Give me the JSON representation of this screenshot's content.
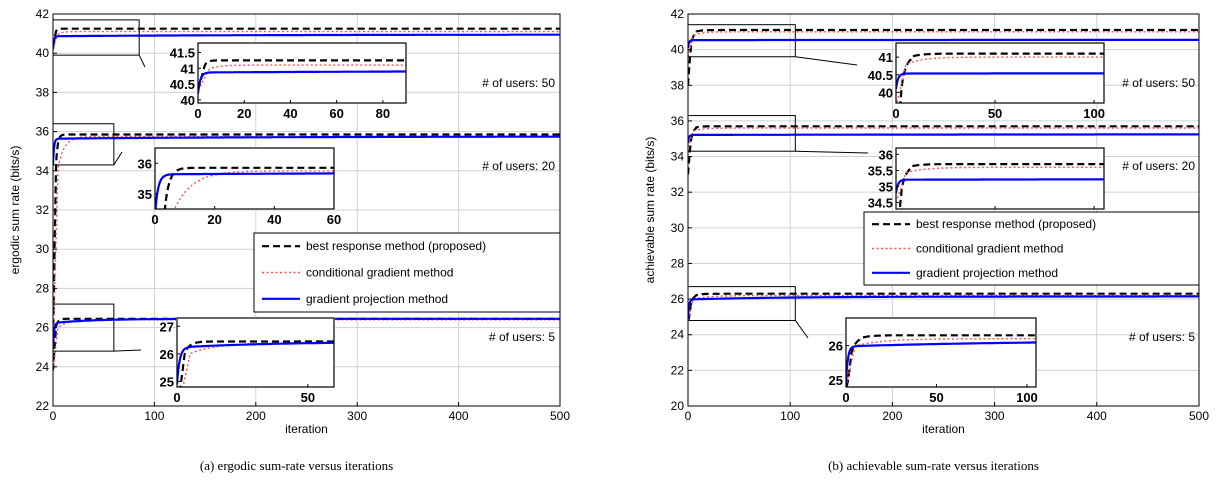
{
  "chart_data": [
    {
      "type": "line",
      "caption": "(a) ergodic sum-rate versus iterations",
      "xlabel": "iteration",
      "ylabel": "ergodic sum rate (bits/s)",
      "xlim": [
        0,
        500
      ],
      "ylim": [
        22,
        42
      ],
      "xticks": [
        0,
        100,
        200,
        300,
        400,
        500
      ],
      "yticks": [
        22,
        24,
        26,
        28,
        30,
        32,
        34,
        36,
        38,
        40,
        42
      ],
      "grid": true,
      "legend": {
        "placement": "center-right",
        "entries": [
          "best response method (proposed)",
          "conditional gradient method",
          "gradient projection method"
        ]
      },
      "groups": [
        {
          "annotation": "# of users: 50",
          "series": [
            {
              "name": "best response method (proposed)",
              "start": 40.3,
              "end": 41.25,
              "rise": 3,
              "tau": 1.2,
              "ly": -0.4,
              "lk": 1.0
            },
            {
              "name": "conditional gradient method",
              "start": 40.3,
              "end": 41.1,
              "rise": 5,
              "tau": 4,
              "ly": -0.4,
              "lk": 1.0
            },
            {
              "name": "gradient projection method",
              "start": 40.4,
              "end": 40.95,
              "rise": 0,
              "tau": 200,
              "ly": 40.2,
              "lk": 1.0
            }
          ],
          "inset": {
            "xlim": [
              0,
              90
            ],
            "ylim": [
              39.9,
              41.8
            ],
            "xticks": [
              0,
              20,
              40,
              60,
              80
            ],
            "yticks": [
              40,
              40.5,
              41,
              41.5
            ],
            "zoom_xlim": [
              0,
              85
            ],
            "zoom_ylim": [
              39.9,
              41.7
            ]
          }
        },
        {
          "annotation": "# of users: 20",
          "series": [
            {
              "name": "best response method (proposed)",
              "start": 25,
              "end": 35.85,
              "rise": 3,
              "tau": 1.5,
              "ly": -0.4,
              "lk": 1.0
            },
            {
              "name": "conditional gradient method",
              "start": 25,
              "end": 35.75,
              "rise": 5,
              "tau": 6,
              "ly": -0.4,
              "lk": 1.0
            },
            {
              "name": "gradient projection method",
              "start": 35.0,
              "end": 35.75,
              "rise": 0,
              "tau": 200,
              "ly": 34.3,
              "lk": 1.0
            }
          ],
          "inset": {
            "xlim": [
              0,
              60
            ],
            "ylim": [
              34.5,
              36.5
            ],
            "xticks": [
              0,
              20,
              40,
              60
            ],
            "yticks": [
              35,
              36
            ],
            "zoom_xlim": [
              0,
              60
            ],
            "zoom_ylim": [
              34.3,
              36.4
            ]
          }
        },
        {
          "annotation": "# of users: 5",
          "series": [
            {
              "name": "best response method (proposed)",
              "start": 23.8,
              "end": 26.45,
              "rise": 3,
              "tau": 2,
              "ly": -0.4,
              "lk": 1.0
            },
            {
              "name": "conditional gradient method",
              "start": 23.8,
              "end": 26.4,
              "rise": 5,
              "tau": 10,
              "ly": -0.4,
              "lk": 1.0
            },
            {
              "name": "gradient projection method",
              "start": 25.0,
              "end": 26.45,
              "rise": 0,
              "tau": 40,
              "ly": 24.9,
              "lk": 1.0
            }
          ],
          "inset": {
            "xlim": [
              0,
              60
            ],
            "ylim": [
              24.8,
              27.3
            ],
            "xticks": [
              0,
              50
            ],
            "yticks": [
              25,
              26,
              27
            ],
            "zoom_xlim": [
              0,
              60
            ],
            "zoom_ylim": [
              24.8,
              27.2
            ]
          }
        }
      ]
    },
    {
      "type": "line",
      "caption": "(b) achievable sum-rate versus iterations",
      "xlabel": "iteration",
      "ylabel": "achievable sum rate (bits/s)",
      "xlim": [
        0,
        500
      ],
      "ylim": [
        20,
        42
      ],
      "xticks": [
        0,
        100,
        200,
        300,
        400,
        500
      ],
      "yticks": [
        20,
        22,
        24,
        26,
        28,
        30,
        32,
        34,
        36,
        38,
        40,
        42
      ],
      "grid": true,
      "legend": {
        "placement": "center-right",
        "entries": [
          "best response method (proposed)",
          "conditional gradient method",
          "gradient projection method"
        ]
      },
      "groups": [
        {
          "annotation": "# of users: 50",
          "series": [
            {
              "name": "best response method (proposed)",
              "start": 39.6,
              "end": 41.1,
              "rise": 3,
              "tau": 5,
              "ly": 38.0,
              "lk": 2.0
            },
            {
              "name": "conditional gradient method",
              "start": 39.6,
              "end": 41.0,
              "rise": 5,
              "tau": 8,
              "ly": -0.4,
              "lk": 1.0
            },
            {
              "name": "gradient projection method",
              "start": 40.45,
              "end": 40.55,
              "rise": 0,
              "tau": 300,
              "ly": 40.1,
              "lk": 1.0
            }
          ],
          "inset": {
            "xlim": [
              0,
              105
            ],
            "ylim": [
              39.7,
              41.4
            ],
            "xticks": [
              0,
              50,
              100
            ],
            "yticks": [
              40,
              40.5,
              41
            ],
            "zoom_xlim": [
              0,
              105
            ],
            "zoom_ylim": [
              39.6,
              41.4
            ]
          }
        },
        {
          "annotation": "# of users: 20",
          "series": [
            {
              "name": "best response method (proposed)",
              "start": 34.5,
              "end": 35.7,
              "rise": 3,
              "tau": 5,
              "ly": 33.0,
              "lk": 2.0
            },
            {
              "name": "conditional gradient method",
              "start": 34.5,
              "end": 35.6,
              "rise": 5,
              "tau": 10,
              "ly": -0.4,
              "lk": 1.0
            },
            {
              "name": "gradient projection method",
              "start": 35.0,
              "end": 35.25,
              "rise": 0,
              "tau": 300,
              "ly": 34.8,
              "lk": 1.0
            }
          ],
          "inset": {
            "xlim": [
              0,
              105
            ],
            "ylim": [
              34.3,
              36.2
            ],
            "xticks": [
              0,
              50,
              100
            ],
            "yticks": [
              34.5,
              35,
              35.5,
              36
            ],
            "zoom_xlim": [
              0,
              105
            ],
            "zoom_ylim": [
              34.3,
              36.3
            ]
          }
        },
        {
          "annotation": "# of users: 5",
          "series": [
            {
              "name": "best response method (proposed)",
              "start": 24.8,
              "end": 26.3,
              "rise": 3,
              "tau": 5,
              "ly": 24.8,
              "lk": 2.0
            },
            {
              "name": "conditional gradient method",
              "start": 24.8,
              "end": 26.2,
              "rise": 5,
              "tau": 15,
              "ly": -0.4,
              "lk": 1.0
            },
            {
              "name": "gradient projection method",
              "start": 25.0,
              "end": 26.15,
              "rise": 0,
              "tau": 100,
              "ly": 24.9,
              "lk": 1.0
            }
          ],
          "inset": {
            "xlim": [
              0,
              105
            ],
            "ylim": [
              24.8,
              26.8
            ],
            "xticks": [
              0,
              50,
              100
            ],
            "yticks": [
              25,
              26
            ],
            "zoom_xlim": [
              0,
              105
            ],
            "zoom_ylim": [
              24.8,
              26.7
            ]
          }
        }
      ]
    }
  ],
  "colors": {
    "best_response": "#000000",
    "conditional_gradient": "#ff5050",
    "gradient_projection": "#0000ff",
    "grid": "#d0d0d0"
  }
}
